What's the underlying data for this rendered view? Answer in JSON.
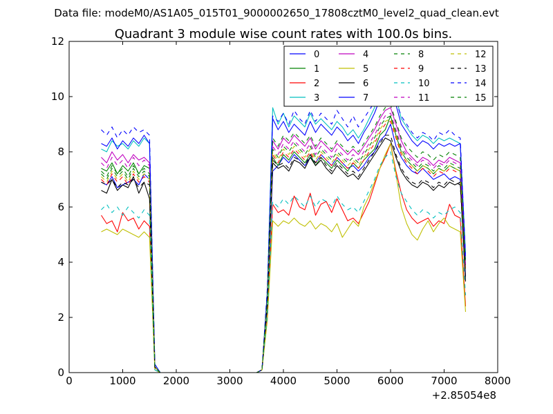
{
  "figure": {
    "suptitle": "Data file: modeM0/AS1A05_015T01_9000002650_17808cztM0_level2_quad_clean.evt"
  },
  "chart_data": {
    "type": "line",
    "title": "Quadrant 3 module wise count rates with 100.0s bins.",
    "xlabel": "",
    "ylabel": "",
    "x_offset_label": "+2.85054e8",
    "xlim": [
      0,
      8000
    ],
    "ylim": [
      0,
      12
    ],
    "xticks": [
      0,
      1000,
      2000,
      3000,
      4000,
      5000,
      6000,
      7000,
      8000
    ],
    "yticks": [
      0,
      2,
      4,
      6,
      8,
      10,
      12
    ],
    "grid": false,
    "legend_position": "top-right",
    "legend_columns": 4,
    "x": [
      600,
      700,
      800,
      900,
      1000,
      1100,
      1200,
      1300,
      1400,
      1500,
      1600,
      1700,
      1800,
      2000,
      2500,
      3000,
      3500,
      3600,
      3700,
      3800,
      3900,
      4000,
      4100,
      4200,
      4300,
      4400,
      4500,
      4600,
      4700,
      4800,
      4900,
      5000,
      5100,
      5200,
      5300,
      5400,
      5500,
      5600,
      5700,
      5800,
      5900,
      6000,
      6100,
      6200,
      6300,
      6400,
      6500,
      6600,
      6700,
      6800,
      6900,
      7000,
      7100,
      7200,
      7300,
      7400
    ],
    "series": [
      {
        "name": "0",
        "color": "#0000ff",
        "dash": "solid",
        "values": [
          6.9,
          6.8,
          7.1,
          6.7,
          6.8,
          6.9,
          7.0,
          6.8,
          7.2,
          7.0,
          0.2,
          0.0,
          0.0,
          0.0,
          0.0,
          0.0,
          0.0,
          0.1,
          2.4,
          7.3,
          7.5,
          7.8,
          7.6,
          7.9,
          7.7,
          7.5,
          7.8,
          7.6,
          7.9,
          7.7,
          7.5,
          7.8,
          7.6,
          7.4,
          7.5,
          7.3,
          7.5,
          7.8,
          8.0,
          8.4,
          8.6,
          9.0,
          8.2,
          7.8,
          7.5,
          7.3,
          7.2,
          7.4,
          7.2,
          7.0,
          7.1,
          7.2,
          7.0,
          7.1,
          7.0,
          3.5
        ]
      },
      {
        "name": "1",
        "color": "#008000",
        "dash": "solid",
        "values": [
          7.4,
          7.3,
          7.6,
          7.2,
          7.5,
          7.3,
          7.6,
          7.2,
          7.5,
          7.4,
          0.2,
          0.0,
          0.0,
          0.0,
          0.0,
          0.0,
          0.0,
          0.1,
          2.6,
          7.8,
          7.5,
          7.9,
          7.7,
          8.0,
          7.8,
          7.6,
          7.9,
          7.5,
          7.8,
          7.6,
          7.4,
          7.7,
          7.5,
          7.3,
          7.6,
          7.4,
          7.7,
          7.9,
          8.1,
          8.6,
          8.8,
          9.3,
          8.6,
          8.0,
          7.7,
          7.5,
          7.3,
          7.5,
          7.4,
          7.2,
          7.4,
          7.3,
          7.5,
          7.4,
          7.3,
          3.8
        ]
      },
      {
        "name": "2",
        "color": "#ff0000",
        "dash": "solid",
        "values": [
          5.7,
          5.4,
          5.5,
          5.1,
          5.8,
          5.5,
          5.6,
          5.2,
          5.5,
          5.3,
          0.1,
          0.0,
          0.0,
          0.0,
          0.0,
          0.0,
          0.0,
          0.1,
          2.0,
          6.1,
          5.8,
          5.9,
          5.7,
          6.4,
          6.0,
          5.9,
          6.5,
          5.7,
          6.1,
          6.2,
          5.8,
          6.3,
          5.9,
          5.5,
          5.6,
          5.4,
          5.8,
          6.2,
          6.8,
          7.4,
          7.8,
          8.3,
          7.3,
          6.5,
          5.9,
          5.6,
          5.4,
          5.5,
          5.6,
          5.3,
          5.5,
          5.4,
          6.1,
          5.7,
          5.6,
          2.4
        ]
      },
      {
        "name": "3",
        "color": "#00bfbf",
        "dash": "solid",
        "values": [
          8.1,
          8.0,
          8.4,
          8.2,
          8.3,
          8.1,
          8.4,
          8.2,
          8.5,
          8.3,
          0.3,
          0.0,
          0.0,
          0.0,
          0.0,
          0.0,
          0.0,
          0.1,
          3.0,
          9.6,
          9.0,
          9.4,
          8.9,
          9.3,
          9.1,
          8.9,
          9.4,
          9.0,
          9.2,
          9.0,
          8.8,
          9.1,
          8.9,
          8.6,
          8.8,
          8.5,
          8.8,
          9.2,
          9.6,
          10.3,
          10.7,
          11.1,
          10.0,
          9.2,
          8.9,
          8.6,
          8.4,
          8.6,
          8.5,
          8.3,
          8.5,
          8.4,
          8.5,
          8.4,
          8.3,
          4.3
        ]
      },
      {
        "name": "4",
        "color": "#bf00bf",
        "dash": "solid",
        "values": [
          7.8,
          7.6,
          8.0,
          7.7,
          7.9,
          7.6,
          7.9,
          7.7,
          7.8,
          7.6,
          0.2,
          0.0,
          0.0,
          0.0,
          0.0,
          0.0,
          0.0,
          0.1,
          2.8,
          8.4,
          8.1,
          8.5,
          8.3,
          8.6,
          8.4,
          8.2,
          8.5,
          8.1,
          8.4,
          8.2,
          8.0,
          8.3,
          8.1,
          7.9,
          8.1,
          7.9,
          8.2,
          8.5,
          8.8,
          9.2,
          9.5,
          9.6,
          9.0,
          8.4,
          8.0,
          7.8,
          7.6,
          7.8,
          7.7,
          7.5,
          7.7,
          7.6,
          7.8,
          7.7,
          7.6,
          3.9
        ]
      },
      {
        "name": "5",
        "color": "#bfbf00",
        "dash": "solid",
        "values": [
          5.1,
          5.2,
          5.1,
          5.0,
          5.2,
          5.1,
          5.0,
          4.9,
          5.1,
          4.9,
          0.1,
          0.0,
          0.0,
          0.0,
          0.0,
          0.0,
          0.0,
          0.1,
          1.9,
          5.5,
          5.3,
          5.5,
          5.4,
          5.6,
          5.4,
          5.3,
          5.5,
          5.2,
          5.4,
          5.3,
          5.1,
          5.4,
          4.9,
          5.2,
          5.5,
          5.3,
          6.0,
          6.4,
          6.9,
          7.4,
          7.9,
          8.3,
          7.2,
          6.0,
          5.4,
          5.0,
          4.8,
          5.2,
          5.5,
          5.1,
          5.4,
          5.6,
          5.3,
          5.2,
          5.1,
          2.2
        ]
      },
      {
        "name": "6",
        "color": "#000000",
        "dash": "solid",
        "values": [
          6.6,
          6.5,
          7.0,
          6.6,
          6.8,
          6.7,
          7.1,
          6.5,
          6.9,
          6.3,
          0.2,
          0.0,
          0.0,
          0.0,
          0.0,
          0.0,
          0.0,
          0.1,
          2.5,
          7.6,
          7.4,
          7.5,
          7.3,
          7.7,
          7.6,
          7.4,
          7.8,
          7.5,
          7.7,
          7.4,
          7.2,
          7.5,
          7.3,
          7.1,
          7.2,
          7.0,
          7.3,
          7.6,
          7.9,
          8.2,
          8.5,
          8.4,
          7.8,
          7.3,
          7.0,
          6.8,
          6.7,
          6.9,
          6.8,
          6.6,
          6.8,
          6.7,
          6.9,
          6.8,
          6.9,
          3.3
        ]
      },
      {
        "name": "7",
        "color": "#0000ff",
        "dash": "solid",
        "values": [
          8.3,
          8.2,
          8.5,
          8.1,
          8.4,
          8.2,
          8.5,
          8.3,
          8.6,
          8.3,
          0.3,
          0.0,
          0.0,
          0.0,
          0.0,
          0.0,
          0.0,
          0.1,
          2.9,
          9.2,
          8.8,
          9.1,
          8.7,
          9.0,
          8.8,
          8.6,
          9.1,
          8.7,
          9.0,
          8.8,
          8.6,
          8.9,
          8.7,
          8.4,
          8.6,
          8.3,
          8.7,
          9.0,
          9.4,
          9.9,
          10.2,
          10.6,
          9.7,
          9.0,
          8.7,
          8.4,
          8.2,
          8.4,
          8.3,
          8.1,
          8.3,
          8.2,
          8.3,
          8.2,
          8.3,
          4.1
        ]
      },
      {
        "name": "8",
        "color": "#008000",
        "dash": "dashed",
        "values": [
          7.2,
          7.0,
          7.4,
          7.1,
          7.3,
          7.0,
          7.4,
          7.1,
          7.3,
          7.1,
          0.2,
          0.0,
          0.0,
          0.0,
          0.0,
          0.0,
          0.0,
          0.1,
          2.7,
          8.1,
          7.8,
          8.2,
          8.0,
          8.3,
          8.1,
          7.9,
          8.2,
          7.8,
          8.1,
          7.9,
          7.7,
          8.0,
          7.8,
          7.6,
          7.8,
          7.6,
          7.9,
          8.2,
          8.5,
          8.9,
          9.2,
          9.3,
          8.7,
          8.1,
          7.8,
          7.6,
          7.4,
          7.6,
          7.5,
          7.3,
          7.5,
          7.4,
          7.6,
          7.5,
          7.4,
          3.7
        ]
      },
      {
        "name": "9",
        "color": "#ff0000",
        "dash": "dashed",
        "values": [
          7.0,
          6.8,
          7.2,
          6.9,
          7.1,
          6.8,
          7.2,
          6.9,
          7.1,
          6.9,
          0.2,
          0.0,
          0.0,
          0.0,
          0.0,
          0.0,
          0.0,
          0.1,
          2.6,
          7.9,
          7.6,
          8.0,
          7.8,
          8.1,
          7.9,
          7.7,
          8.0,
          7.6,
          7.9,
          7.7,
          7.5,
          7.8,
          7.6,
          7.4,
          7.6,
          7.4,
          7.7,
          8.0,
          8.3,
          8.7,
          9.0,
          9.1,
          8.5,
          7.9,
          7.6,
          7.4,
          7.2,
          7.4,
          7.3,
          7.1,
          7.3,
          7.2,
          7.4,
          7.3,
          7.2,
          3.6
        ]
      },
      {
        "name": "10",
        "color": "#00bfbf",
        "dash": "dashed",
        "values": [
          5.9,
          6.1,
          5.8,
          6.0,
          5.7,
          6.0,
          5.8,
          5.6,
          5.9,
          5.7,
          0.1,
          0.0,
          0.0,
          0.0,
          0.0,
          0.0,
          0.0,
          0.1,
          2.1,
          6.2,
          6.0,
          6.3,
          6.1,
          6.4,
          6.2,
          6.0,
          6.4,
          6.0,
          6.3,
          6.2,
          6.0,
          6.4,
          6.1,
          5.9,
          6.0,
          5.8,
          6.2,
          6.6,
          7.0,
          7.5,
          7.8,
          8.0,
          7.1,
          6.5,
          6.2,
          5.9,
          5.7,
          5.9,
          5.8,
          5.6,
          5.8,
          5.7,
          5.9,
          6.0,
          5.8,
          2.8
        ]
      },
      {
        "name": "11",
        "color": "#bf00bf",
        "dash": "dashed",
        "values": [
          7.6,
          7.4,
          7.8,
          7.5,
          7.7,
          7.4,
          7.8,
          7.5,
          7.7,
          7.5,
          0.2,
          0.0,
          0.0,
          0.0,
          0.0,
          0.0,
          0.0,
          0.1,
          2.7,
          8.2,
          7.9,
          8.3,
          8.1,
          8.4,
          8.2,
          8.0,
          8.3,
          7.9,
          8.2,
          8.0,
          7.8,
          8.1,
          7.9,
          7.7,
          7.9,
          7.7,
          8.0,
          8.3,
          8.6,
          9.0,
          9.3,
          9.4,
          8.8,
          8.2,
          7.9,
          7.7,
          7.5,
          7.7,
          7.6,
          7.4,
          7.6,
          7.5,
          7.7,
          7.6,
          7.5,
          3.8
        ]
      },
      {
        "name": "12",
        "color": "#bfbf00",
        "dash": "dashed",
        "values": [
          7.1,
          6.9,
          7.3,
          7.0,
          7.2,
          6.9,
          7.3,
          7.0,
          7.2,
          7.0,
          0.2,
          0.0,
          0.0,
          0.0,
          0.0,
          0.0,
          0.0,
          0.1,
          2.6,
          8.0,
          7.7,
          8.1,
          7.9,
          8.2,
          8.0,
          7.8,
          8.1,
          7.7,
          8.0,
          7.8,
          7.6,
          7.9,
          7.7,
          7.5,
          7.7,
          7.5,
          7.8,
          8.1,
          8.4,
          8.8,
          9.1,
          9.2,
          8.6,
          8.0,
          7.7,
          7.5,
          7.3,
          7.5,
          7.4,
          7.2,
          7.4,
          7.3,
          7.5,
          7.4,
          7.3,
          3.6
        ]
      },
      {
        "name": "13",
        "color": "#000000",
        "dash": "dashed",
        "values": [
          6.9,
          6.8,
          7.0,
          6.7,
          6.9,
          6.8,
          7.0,
          6.7,
          6.9,
          6.8,
          0.2,
          0.0,
          0.0,
          0.0,
          0.0,
          0.0,
          0.0,
          0.1,
          2.5,
          7.7,
          7.5,
          7.6,
          7.4,
          7.8,
          7.7,
          7.5,
          7.9,
          7.6,
          7.8,
          7.5,
          7.3,
          7.6,
          7.4,
          7.2,
          7.3,
          7.1,
          7.4,
          7.7,
          8.0,
          8.3,
          8.6,
          8.6,
          7.9,
          7.4,
          7.1,
          6.9,
          6.8,
          7.0,
          6.9,
          6.7,
          6.9,
          6.8,
          7.0,
          6.9,
          6.8,
          3.4
        ]
      },
      {
        "name": "14",
        "color": "#0000ff",
        "dash": "dashed",
        "values": [
          8.8,
          8.6,
          8.9,
          8.5,
          8.8,
          8.6,
          8.9,
          8.7,
          8.8,
          8.6,
          0.3,
          0.0,
          0.0,
          0.0,
          0.0,
          0.0,
          0.0,
          0.1,
          3.1,
          9.3,
          9.1,
          9.4,
          9.0,
          9.5,
          9.2,
          9.0,
          9.5,
          9.1,
          9.4,
          9.2,
          9.0,
          9.5,
          9.2,
          8.9,
          9.3,
          8.9,
          9.2,
          9.5,
          9.8,
          10.2,
          10.5,
          10.6,
          9.8,
          9.3,
          9.0,
          8.7,
          8.5,
          8.7,
          8.6,
          8.4,
          8.7,
          8.6,
          8.8,
          8.6,
          8.5,
          4.2
        ]
      },
      {
        "name": "15",
        "color": "#008000",
        "dash": "dashed",
        "values": [
          7.3,
          7.1,
          7.5,
          7.2,
          7.4,
          7.1,
          7.5,
          7.2,
          7.4,
          7.2,
          0.2,
          0.0,
          0.0,
          0.0,
          0.0,
          0.0,
          0.0,
          0.1,
          2.7,
          8.5,
          8.2,
          8.6,
          8.4,
          8.7,
          8.5,
          8.3,
          8.6,
          8.2,
          8.5,
          8.3,
          8.1,
          8.4,
          8.2,
          8.0,
          8.2,
          8.0,
          8.3,
          8.6,
          8.9,
          9.3,
          9.6,
          9.7,
          9.1,
          8.5,
          8.2,
          8.0,
          7.8,
          8.0,
          7.9,
          7.7,
          7.9,
          7.8,
          8.0,
          7.9,
          7.8,
          3.9
        ]
      }
    ]
  }
}
